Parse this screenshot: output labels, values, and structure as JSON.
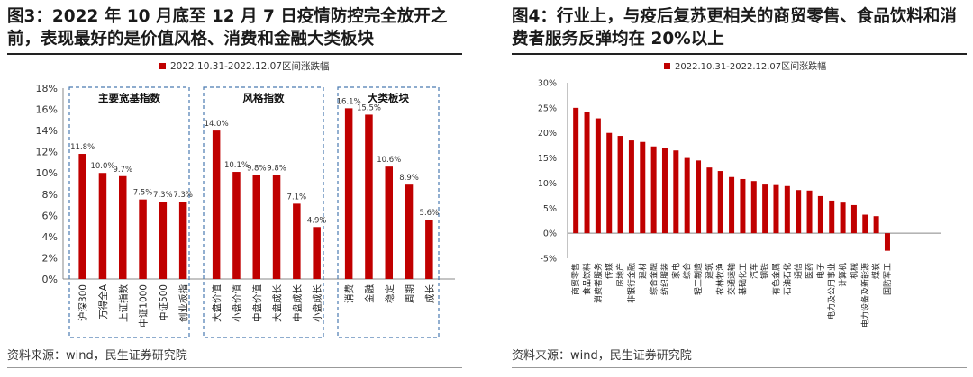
{
  "figure_left": {
    "title": "图3：2022 年 10 月底至 12 月 7 日疫情防控完全放开之前，表现最好的是价值风格、消费和金融大类板块",
    "source": "资料来源：wind，民生证券研究院"
  },
  "figure_right": {
    "title": "图4：行业上，与疫后复苏更相关的商贸零售、食品饮料和消费者服务反弹均在 20%以上",
    "source": "资料来源：wind，民生证券研究院"
  },
  "colors": {
    "bar": "#c00000",
    "group_border": "#4a7ab0",
    "axis": "#888888"
  },
  "chart_data": [
    {
      "type": "bar",
      "title": "",
      "legend": "2022.10.31-2022.12.07区间涨跌幅",
      "legend_position": "top-left",
      "ylim": [
        0,
        18
      ],
      "yticks": [
        "0%",
        "2%",
        "4%",
        "6%",
        "8%",
        "10%",
        "12%",
        "14%",
        "16%",
        "18%"
      ],
      "groups": [
        {
          "label": "主要宽基指数",
          "categories": [
            "沪深300",
            "万得全A",
            "上证指数",
            "中证1000",
            "中证500",
            "创业板指"
          ],
          "values": [
            11.8,
            10.0,
            9.7,
            7.5,
            7.3,
            7.3
          ],
          "labels": [
            "11.8%",
            "10.0%",
            "9.7%",
            "7.5%",
            "7.3%",
            "7.3%"
          ]
        },
        {
          "label": "风格指数",
          "categories": [
            "大盘价值",
            "小盘价值",
            "中盘价值",
            "大盘成长",
            "中盘成长",
            "小盘成长"
          ],
          "values": [
            14.0,
            10.1,
            9.8,
            9.8,
            7.1,
            4.9
          ],
          "labels": [
            "14.0%",
            "10.1%",
            "9.8%",
            "9.8%",
            "7.1%",
            "4.9%"
          ]
        },
        {
          "label": "大类板块",
          "categories": [
            "消费",
            "金融",
            "稳定",
            "周期",
            "成长"
          ],
          "values": [
            16.1,
            15.5,
            10.6,
            8.9,
            5.6
          ],
          "labels": [
            "16.1%",
            "15.5%",
            "10.6%",
            "8.9%",
            "5.6%"
          ]
        }
      ]
    },
    {
      "type": "bar",
      "title": "",
      "legend": "2022.10.31-2022.12.07区间涨跌幅",
      "legend_position": "top-left",
      "ylim": [
        -5,
        30
      ],
      "yticks": [
        "-5%",
        "0%",
        "5%",
        "10%",
        "15%",
        "20%",
        "25%",
        "30%"
      ],
      "categories": [
        "商贸零售",
        "食品饮料",
        "消费者服务",
        "传媒",
        "房地产",
        "非银行金融",
        "建材",
        "综合金融",
        "纺织服装",
        "家电",
        "综合",
        "轻工制造",
        "建筑",
        "农林牧渔",
        "交通运输",
        "基础化工",
        "汽车",
        "钢铁",
        "有色金属",
        "石油石化",
        "通信",
        "医药",
        "电子",
        "电力及公用事业",
        "计算机",
        "机械",
        "电力设备及新能源",
        "煤炭",
        "国防军工"
      ],
      "values": [
        25.0,
        24.2,
        22.9,
        20.0,
        19.4,
        18.5,
        18.2,
        17.3,
        17.0,
        16.5,
        15.0,
        14.5,
        13.1,
        12.4,
        11.2,
        10.8,
        10.4,
        9.7,
        9.6,
        9.4,
        8.6,
        8.5,
        7.4,
        6.5,
        6.1,
        5.6,
        3.7,
        3.4,
        -3.5
      ]
    }
  ]
}
